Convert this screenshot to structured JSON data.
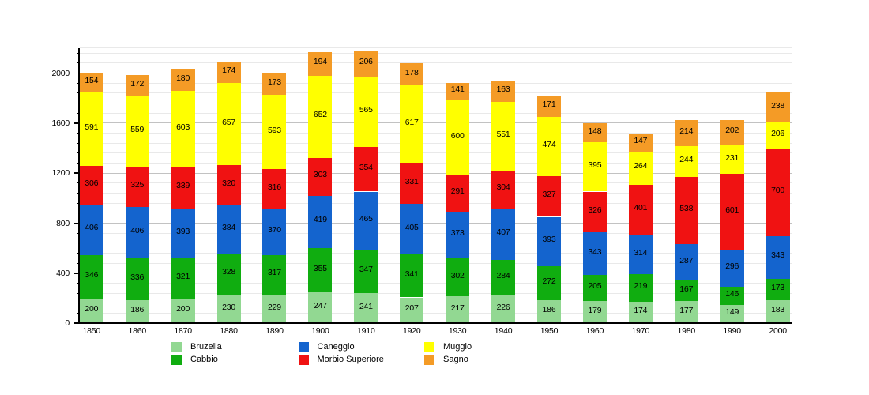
{
  "chart_data": {
    "type": "bar",
    "subtype": "stacked",
    "title": "",
    "xlabel": "",
    "ylabel": "",
    "categories": [
      "1850",
      "1860",
      "1870",
      "1880",
      "1890",
      "1900",
      "1910",
      "1920",
      "1930",
      "1940",
      "1950",
      "1960",
      "1970",
      "1980",
      "1990",
      "2000"
    ],
    "series": [
      {
        "name": "Bruzella",
        "color": "#92D892",
        "values": [
          200,
          186,
          200,
          230,
          229,
          247,
          241,
          207,
          217,
          226,
          186,
          179,
          174,
          177,
          149,
          183
        ]
      },
      {
        "name": "Cabbio",
        "color": "#10AD10",
        "values": [
          346,
          336,
          321,
          328,
          317,
          355,
          347,
          341,
          302,
          284,
          272,
          205,
          219,
          167,
          146,
          173
        ]
      },
      {
        "name": "Caneggio",
        "color": "#1464CE",
        "values": [
          406,
          406,
          393,
          384,
          370,
          419,
          465,
          405,
          373,
          407,
          393,
          343,
          314,
          287,
          296,
          343
        ]
      },
      {
        "name": "Morbio Superiore",
        "color": "#F01212",
        "values": [
          306,
          325,
          339,
          320,
          316,
          303,
          354,
          331,
          291,
          304,
          327,
          326,
          401,
          538,
          601,
          700
        ]
      },
      {
        "name": "Muggio",
        "color": "#FFFF00",
        "values": [
          591,
          559,
          603,
          657,
          593,
          652,
          565,
          617,
          600,
          551,
          474,
          395,
          264,
          244,
          231,
          206
        ]
      },
      {
        "name": "Sagno",
        "color": "#F49B26",
        "values": [
          154,
          172,
          180,
          174,
          173,
          194,
          206,
          178,
          141,
          163,
          171,
          148,
          147,
          214,
          202,
          238
        ]
      }
    ],
    "y_axis": {
      "min": 0,
      "max": 2200,
      "major_tick_interval": 400,
      "minor_tick_interval": 80,
      "major_labels": [
        "0",
        "400",
        "800",
        "1200",
        "1600",
        "2000"
      ],
      "major_values": [
        0,
        400,
        800,
        1200,
        1600,
        2000
      ]
    },
    "grid": {
      "minor_color": "#E9E9E9",
      "major_color": "#C2C2C2",
      "on": true
    },
    "legend": {
      "position": "bottom",
      "columns": 3,
      "entries": [
        "Bruzella",
        "Cabbio",
        "Caneggio",
        "Morbio Superiore",
        "Muggio",
        "Sagno"
      ]
    },
    "value_labels": "inside-segments",
    "colors": {
      "background": "#FFFFFF",
      "axis": "#000000",
      "text": "#000000"
    }
  }
}
